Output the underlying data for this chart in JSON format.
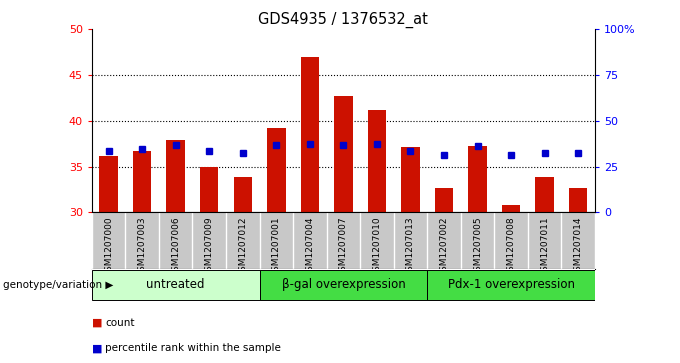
{
  "title": "GDS4935 / 1376532_at",
  "samples": [
    "GSM1207000",
    "GSM1207003",
    "GSM1207006",
    "GSM1207009",
    "GSM1207012",
    "GSM1207001",
    "GSM1207004",
    "GSM1207007",
    "GSM1207010",
    "GSM1207013",
    "GSM1207002",
    "GSM1207005",
    "GSM1207008",
    "GSM1207011",
    "GSM1207014"
  ],
  "counts": [
    36.2,
    36.7,
    37.9,
    35.0,
    33.9,
    39.2,
    47.0,
    42.7,
    41.2,
    37.1,
    32.7,
    37.2,
    30.8,
    33.9,
    32.7
  ],
  "percentiles": [
    36.7,
    36.9,
    37.3,
    36.7,
    36.5,
    37.3,
    37.5,
    37.3,
    37.5,
    36.7,
    36.3,
    37.2,
    36.3,
    36.5,
    36.5
  ],
  "ylim_left": [
    30,
    50
  ],
  "ylim_right": [
    0,
    100
  ],
  "groups": [
    {
      "label": "untreated",
      "start": 0,
      "end": 5,
      "color": "#ccffcc"
    },
    {
      "label": "β-gal overexpression",
      "start": 5,
      "end": 10,
      "color": "#44dd44"
    },
    {
      "label": "Pdx-1 overexpression",
      "start": 10,
      "end": 15,
      "color": "#44dd44"
    }
  ],
  "bar_color": "#cc1100",
  "dot_color": "#0000cc",
  "bar_width": 0.55,
  "xlabel": "genotype/variation",
  "yticks_left": [
    30,
    35,
    40,
    45,
    50
  ],
  "yticks_right": [
    0,
    25,
    50,
    75,
    100
  ],
  "bg_color": "#ffffff",
  "tick_area_color": "#c8c8c8",
  "grid_vals": [
    35,
    40,
    45
  ]
}
